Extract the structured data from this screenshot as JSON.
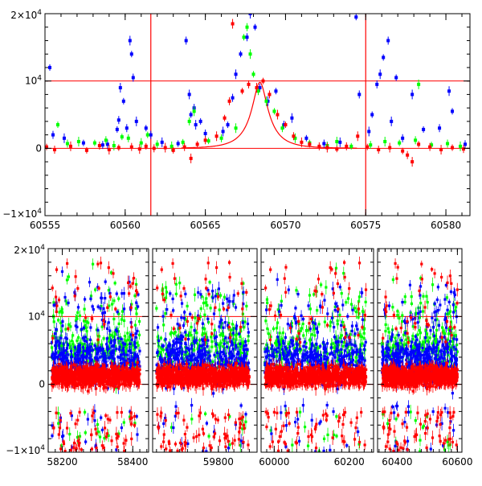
{
  "chart_data": [
    {
      "type": "scatter",
      "title": "",
      "xlabel": "",
      "ylabel": "",
      "xlim": [
        60555,
        60581.5
      ],
      "ylim": [
        -10000,
        20000
      ],
      "x_ticks": [
        60555,
        60560,
        60565,
        60570,
        60575,
        60580
      ],
      "x_tick_labels": [
        "60555",
        "60560",
        "60565",
        "60570",
        "60575",
        "60580"
      ],
      "y_ticks": [
        -10000,
        0,
        10000,
        20000
      ],
      "y_tick_labels": [
        {
          "mantissa": "−1×10",
          "exp": "4"
        },
        {
          "mantissa": "0",
          "exp": ""
        },
        {
          "mantissa": "10",
          "exp": "4"
        },
        {
          "mantissa": "2×10",
          "exp": "4"
        }
      ],
      "grid": false,
      "colors": {
        "blue": "#0000ff",
        "green": "#00ff00",
        "red": "#ff0000",
        "model": "#ff0000"
      },
      "reference_lines": {
        "horizontal": [
          0,
          10000
        ],
        "vertical": [
          60561.6,
          60575.0
        ]
      },
      "model_curve": {
        "type": "microlensing-event",
        "peak_x": 60568.4,
        "peak_y": 9800,
        "baseline_y": 0
      },
      "series": [
        {
          "color": "#0000ff",
          "points": [
            [
              60555.3,
              12000
            ],
            [
              60555.5,
              2000
            ],
            [
              60556.2,
              1500
            ],
            [
              60557.4,
              800
            ],
            [
              60558.6,
              500
            ],
            [
              60558.9,
              600
            ],
            [
              60559.5,
              2800
            ],
            [
              60559.6,
              4200
            ],
            [
              60559.7,
              9000
            ],
            [
              60559.9,
              7000
            ],
            [
              60560.1,
              3000
            ],
            [
              60560.3,
              16000
            ],
            [
              60560.4,
              14000
            ],
            [
              60560.5,
              10500
            ],
            [
              60560.7,
              4000
            ],
            [
              60561.3,
              3000
            ],
            [
              60561.6,
              2000
            ],
            [
              60562.3,
              900
            ],
            [
              60563.3,
              700
            ],
            [
              60563.8,
              16000
            ],
            [
              60564.0,
              8000
            ],
            [
              60564.1,
              5000
            ],
            [
              60564.3,
              6000
            ],
            [
              60564.4,
              3500
            ],
            [
              60564.7,
              4000
            ],
            [
              60565.0,
              2200
            ],
            [
              60566.1,
              2500
            ],
            [
              60566.4,
              3500
            ],
            [
              60566.7,
              7500
            ],
            [
              60566.9,
              11000
            ],
            [
              60567.2,
              14000
            ],
            [
              60567.6,
              16500
            ],
            [
              60567.8,
              20000
            ],
            [
              60568.1,
              18000
            ],
            [
              60568.4,
              9000
            ],
            [
              60568.9,
              7000
            ],
            [
              60569.4,
              8500
            ],
            [
              60569.9,
              3500
            ],
            [
              60570.4,
              4500
            ],
            [
              60571.3,
              1500
            ],
            [
              60572.4,
              700
            ],
            [
              60573.4,
              900
            ],
            [
              60574.4,
              19500
            ],
            [
              60574.6,
              8000
            ],
            [
              60575.2,
              2500
            ],
            [
              60575.4,
              5000
            ],
            [
              60575.7,
              9500
            ],
            [
              60575.9,
              11000
            ],
            [
              60576.1,
              13500
            ],
            [
              60576.4,
              16000
            ],
            [
              60576.6,
              4000
            ],
            [
              60576.9,
              10500
            ],
            [
              60577.3,
              1500
            ],
            [
              60577.9,
              8000
            ],
            [
              60578.6,
              2800
            ],
            [
              60579.6,
              3000
            ],
            [
              60580.2,
              8500
            ],
            [
              60580.4,
              5500
            ],
            [
              60581.2,
              600
            ]
          ]
        },
        {
          "color": "#00ff00",
          "points": [
            [
              60555.8,
              3500
            ],
            [
              60556.4,
              700
            ],
            [
              60557.1,
              1000
            ],
            [
              60558.1,
              800
            ],
            [
              60558.8,
              1200
            ],
            [
              60559.3,
              400
            ],
            [
              60559.8,
              1700
            ],
            [
              60560.2,
              1500
            ],
            [
              60561.0,
              800
            ],
            [
              60561.4,
              2000
            ],
            [
              60562.0,
              600
            ],
            [
              60562.9,
              300
            ],
            [
              60563.6,
              900
            ],
            [
              60564.0,
              4000
            ],
            [
              60564.3,
              5500
            ],
            [
              60565.2,
              1100
            ],
            [
              60566.0,
              1500
            ],
            [
              60566.9,
              3000
            ],
            [
              60567.4,
              16500
            ],
            [
              60567.6,
              18000
            ],
            [
              60567.8,
              14000
            ],
            [
              60568.0,
              11000
            ],
            [
              60568.3,
              8500
            ],
            [
              60568.8,
              7000
            ],
            [
              60569.3,
              5500
            ],
            [
              60569.8,
              3000
            ],
            [
              60570.6,
              1500
            ],
            [
              60571.5,
              800
            ],
            [
              60572.6,
              400
            ],
            [
              60573.2,
              1000
            ],
            [
              60574.1,
              300
            ],
            [
              60575.3,
              500
            ],
            [
              60576.2,
              1000
            ],
            [
              60577.1,
              800
            ],
            [
              60578.1,
              1200
            ],
            [
              60578.3,
              9500
            ],
            [
              60579.1,
              500
            ],
            [
              60580.1,
              700
            ],
            [
              60580.9,
              300
            ]
          ]
        },
        {
          "color": "#ff0000",
          "points": [
            [
              60555.1,
              200
            ],
            [
              60555.6,
              -200
            ],
            [
              60556.6,
              300
            ],
            [
              60557.6,
              -300
            ],
            [
              60558.4,
              400
            ],
            [
              60559.0,
              -200
            ],
            [
              60559.6,
              100
            ],
            [
              60560.4,
              200
            ],
            [
              60560.9,
              -100
            ],
            [
              60561.3,
              300
            ],
            [
              60561.8,
              0
            ],
            [
              60562.5,
              100
            ],
            [
              60563.0,
              -300
            ],
            [
              60563.7,
              200
            ],
            [
              60564.1,
              -1500
            ],
            [
              60564.5,
              600
            ],
            [
              60565.0,
              1200
            ],
            [
              60565.7,
              1800
            ],
            [
              60566.2,
              4500
            ],
            [
              60566.5,
              7000
            ],
            [
              60566.7,
              18500
            ],
            [
              60567.3,
              8500
            ],
            [
              60567.7,
              9500
            ],
            [
              60568.2,
              9000
            ],
            [
              60568.6,
              10000
            ],
            [
              60569.0,
              8000
            ],
            [
              60569.5,
              5000
            ],
            [
              60570.0,
              3500
            ],
            [
              60570.5,
              1800
            ],
            [
              60571.0,
              900
            ],
            [
              60571.5,
              600
            ],
            [
              60572.1,
              300
            ],
            [
              60572.6,
              100
            ],
            [
              60573.2,
              -100
            ],
            [
              60573.8,
              300
            ],
            [
              60574.5,
              1800
            ],
            [
              60575.1,
              200
            ],
            [
              60575.8,
              -200
            ],
            [
              60576.5,
              100
            ],
            [
              60577.3,
              -400
            ],
            [
              60577.6,
              -1000
            ],
            [
              60577.9,
              -2000
            ],
            [
              60578.3,
              600
            ],
            [
              60579.0,
              200
            ],
            [
              60579.7,
              -200
            ],
            [
              60580.4,
              100
            ],
            [
              60581.1,
              -100
            ]
          ]
        }
      ]
    },
    {
      "type": "scatter",
      "title": "",
      "xlabel": "",
      "ylabel": "",
      "ylim": [
        -10000,
        20000
      ],
      "y_ticks": [
        -10000,
        0,
        10000,
        20000
      ],
      "y_tick_labels": [
        {
          "mantissa": "−1×10",
          "exp": "4"
        },
        {
          "mantissa": "0",
          "exp": ""
        },
        {
          "mantissa": "10",
          "exp": "4"
        },
        {
          "mantissa": "2×10",
          "exp": "4"
        }
      ],
      "x_axis": "broken",
      "x_ticks": [
        58200,
        58400,
        59800,
        60000,
        60200,
        60400,
        60600
      ],
      "x_tick_labels": [
        "58200",
        "58400",
        "59800",
        "60000",
        "60200",
        "60400",
        "60600"
      ],
      "grid": false,
      "reference_lines": {
        "horizontal": [
          0,
          10000
        ]
      },
      "seasons": [
        {
          "xlim": [
            58160,
            58445
          ],
          "data_range": [
            58170,
            58420
          ]
        },
        {
          "xlim": [
            59630,
            59900
          ],
          "data_range": [
            59640,
            59880
          ]
        },
        {
          "xlim": [
            59965,
            60265
          ],
          "data_range": [
            59975,
            60245
          ]
        },
        {
          "xlim": [
            60335,
            60615
          ],
          "data_range": [
            60350,
            60600
          ]
        }
      ],
      "dense_series_note_colors": [
        "#0000ff",
        "#00ff00",
        "#ff0000"
      ]
    }
  ]
}
